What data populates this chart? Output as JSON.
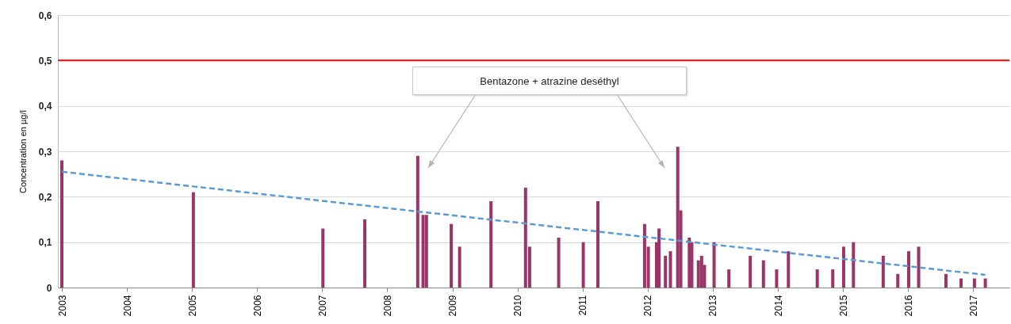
{
  "chart_data": {
    "type": "bar",
    "ylabel": "Concentration en µg/l",
    "annotations": [
      "Bentazone + atrazine deséthyl"
    ],
    "xlim": [
      "2003-01-01",
      "2017-07-01"
    ],
    "xticks": [
      "2003",
      "2004",
      "2005",
      "2006",
      "2007",
      "2008",
      "2009",
      "2010",
      "2011",
      "2012",
      "2013",
      "2014",
      "2015",
      "2016",
      "2017"
    ],
    "ylim": [
      0,
      0.6
    ],
    "yticks": [
      {
        "value": 0,
        "label": "0"
      },
      {
        "value": 0.1,
        "label": "0,1"
      },
      {
        "value": 0.2,
        "label": "0,2"
      },
      {
        "value": 0.3,
        "label": "0,3"
      },
      {
        "value": 0.4,
        "label": "0,4"
      },
      {
        "value": 0.5,
        "label": "0,5"
      },
      {
        "value": 0.6,
        "label": "0,6"
      }
    ],
    "grid": "y",
    "ref_lines": [
      {
        "axis": "y",
        "value": 0.5,
        "color": "#ff0000",
        "line_style": "solid"
      }
    ],
    "series": [
      {
        "color": "#9b3567",
        "x": [
          "2003-01-01",
          "2005-01-08",
          "2007-01-05",
          "2007-08-28",
          "2008-06-20",
          "2008-07-20",
          "2008-08-08",
          "2008-12-25",
          "2009-02-10",
          "2009-08-05",
          "2010-02-15",
          "2010-03-10",
          "2010-08-20",
          "2011-01-05",
          "2011-03-28",
          "2011-12-15",
          "2012-01-05",
          "2012-02-20",
          "2012-03-05",
          "2012-04-10",
          "2012-05-08",
          "2012-06-18",
          "2012-07-05",
          "2012-08-22",
          "2012-09-05",
          "2012-10-12",
          "2012-10-30",
          "2012-11-15",
          "2013-01-08",
          "2013-04-01",
          "2013-07-30",
          "2013-10-12",
          "2013-12-25",
          "2014-03-01",
          "2014-08-10",
          "2014-11-05",
          "2015-01-05",
          "2015-03-01",
          "2015-08-15",
          "2015-11-05",
          "2016-01-05",
          "2016-03-01",
          "2016-08-01",
          "2016-10-25",
          "2017-01-08",
          "2017-03-10"
        ],
        "values": [
          0.28,
          0.21,
          0.13,
          0.15,
          0.29,
          0.16,
          0.16,
          0.14,
          0.09,
          0.19,
          0.22,
          0.09,
          0.11,
          0.1,
          0.19,
          0.14,
          0.09,
          0.1,
          0.13,
          0.07,
          0.08,
          0.31,
          0.17,
          0.11,
          0.1,
          0.06,
          0.07,
          0.05,
          0.1,
          0.04,
          0.07,
          0.06,
          0.04,
          0.08,
          0.04,
          0.04,
          0.09,
          0.1,
          0.07,
          0.03,
          0.08,
          0.09,
          0.03,
          0.02,
          0.02,
          0.02
        ]
      },
      {
        "type": "line",
        "color": "#5b9bd5",
        "line_style": "dashed",
        "marker": "none",
        "x": [
          "2003-01-01",
          "2017-03-10"
        ],
        "values": [
          0.255,
          0.028
        ]
      }
    ]
  }
}
